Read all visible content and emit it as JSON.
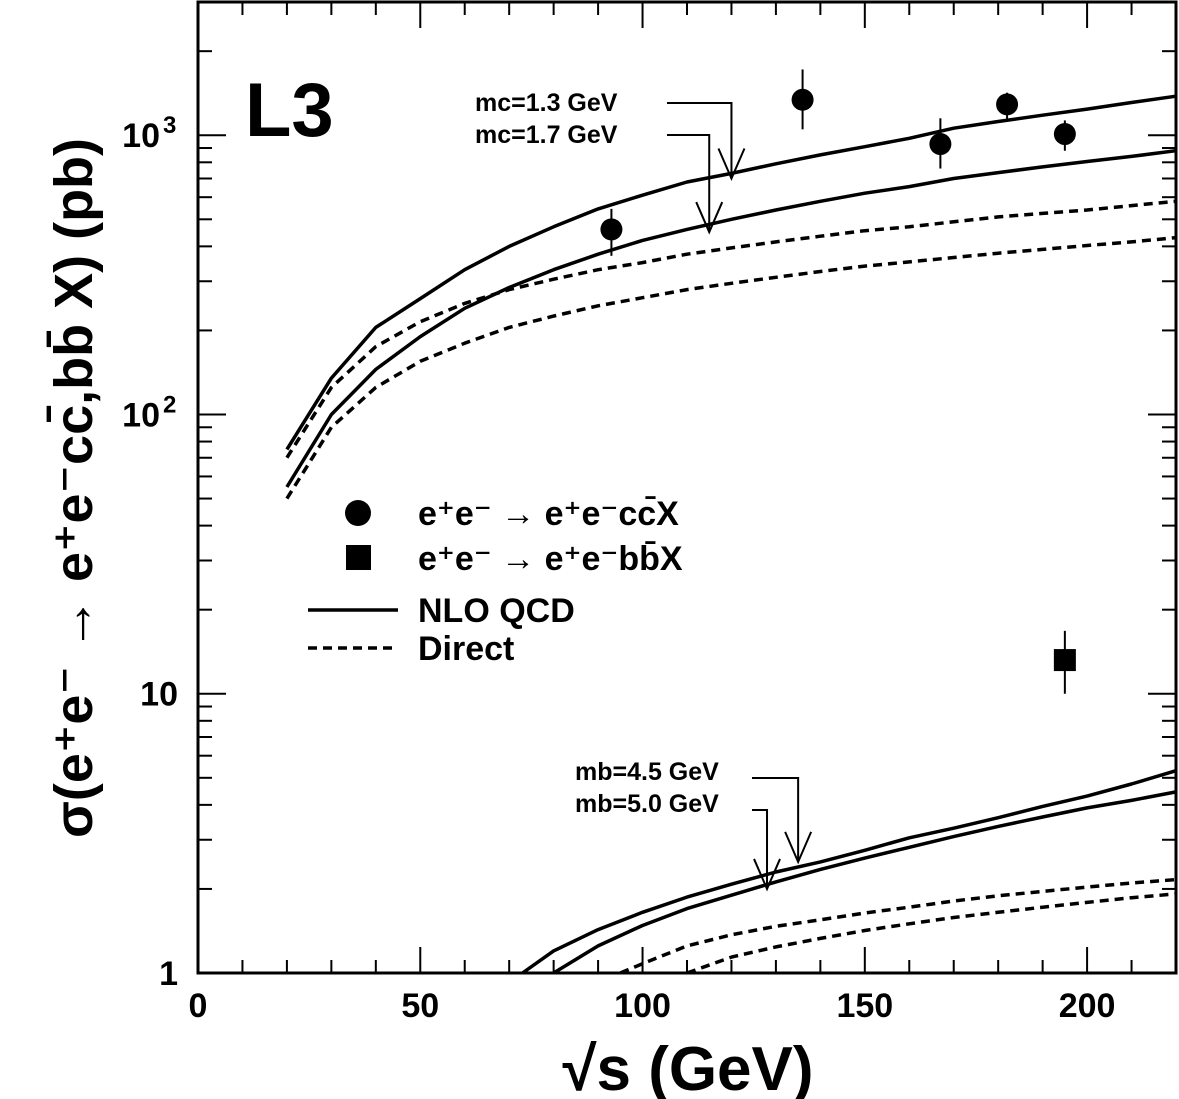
{
  "chart_data": {
    "type": "line",
    "title": "",
    "experiment_label": "L3",
    "xlabel": "√s (GeV)",
    "ylabel": "σ(e⁺e⁻ → e⁺e⁻cc̄,bb̄ X) (pb)",
    "xlim": [
      0,
      220
    ],
    "ylim": [
      1,
      3000
    ],
    "yscale": "log",
    "grid": false,
    "x_ticks": [
      {
        "value": 0,
        "label": "0"
      },
      {
        "value": 50,
        "label": "50"
      },
      {
        "value": 100,
        "label": "100"
      },
      {
        "value": 150,
        "label": "150"
      },
      {
        "value": 200,
        "label": "200"
      }
    ],
    "y_ticks": [
      {
        "value": 1,
        "label": "1",
        "sup": ""
      },
      {
        "value": 10,
        "label": "10",
        "sup": ""
      },
      {
        "value": 100,
        "label": "10",
        "sup": "2"
      },
      {
        "value": 1000,
        "label": "10",
        "sup": "3"
      }
    ],
    "legend": {
      "placement": "center-left",
      "entries": [
        {
          "marker": "circle",
          "label": "e⁺e⁻ → e⁺e⁻cc̄X"
        },
        {
          "marker": "square",
          "label": "e⁺e⁻ → e⁺e⁻bb̄X"
        },
        {
          "line": "solid",
          "label": "NLO QCD"
        },
        {
          "line": "dashed",
          "label": "Direct"
        }
      ]
    },
    "annotations": [
      {
        "label": "mc=1.3 GeV",
        "x": 120,
        "y": 700
      },
      {
        "label": "mc=1.7 GeV",
        "x": 115,
        "y": 450
      },
      {
        "label": "mb=4.5 GeV",
        "x": 135,
        "y": 2.5
      },
      {
        "label": "mb=5.0 GeV",
        "x": 128,
        "y": 2.0
      }
    ],
    "series": [
      {
        "style": "solid",
        "x": [
          20,
          30,
          40,
          50,
          60,
          70,
          80,
          90,
          100,
          110,
          120,
          130,
          140,
          150,
          160,
          170,
          180,
          190,
          200,
          210,
          220
        ],
        "values": [
          75,
          135,
          205,
          260,
          330,
          400,
          470,
          545,
          610,
          680,
          730,
          790,
          850,
          910,
          975,
          1060,
          1120,
          1180,
          1240,
          1310,
          1380
        ]
      },
      {
        "style": "solid",
        "x": [
          20,
          30,
          40,
          50,
          60,
          70,
          80,
          90,
          100,
          110,
          120,
          130,
          140,
          150,
          160,
          170,
          180,
          190,
          200,
          210,
          220
        ],
        "values": [
          55,
          100,
          145,
          190,
          240,
          285,
          330,
          375,
          420,
          460,
          500,
          540,
          580,
          620,
          655,
          700,
          735,
          770,
          805,
          840,
          880
        ]
      },
      {
        "style": "dashed",
        "x": [
          20,
          30,
          40,
          50,
          60,
          70,
          80,
          90,
          100,
          110,
          120,
          130,
          140,
          150,
          160,
          170,
          180,
          190,
          200,
          210,
          220
        ],
        "values": [
          70,
          125,
          175,
          215,
          250,
          280,
          305,
          330,
          350,
          375,
          395,
          415,
          435,
          455,
          470,
          490,
          510,
          525,
          540,
          560,
          580
        ]
      },
      {
        "style": "dashed",
        "x": [
          20,
          30,
          40,
          50,
          60,
          70,
          80,
          90,
          100,
          110,
          120,
          130,
          140,
          150,
          160,
          170,
          180,
          190,
          200,
          210,
          220
        ],
        "values": [
          50,
          90,
          125,
          155,
          180,
          205,
          225,
          245,
          262,
          280,
          295,
          310,
          325,
          340,
          352,
          365,
          378,
          390,
          403,
          415,
          430
        ]
      },
      {
        "style": "solid",
        "x": [
          73,
          80,
          90,
          100,
          110,
          120,
          130,
          140,
          150,
          160,
          170,
          180,
          190,
          200,
          210,
          220
        ],
        "values": [
          1.0,
          1.2,
          1.43,
          1.65,
          1.87,
          2.08,
          2.3,
          2.5,
          2.75,
          3.05,
          3.3,
          3.6,
          3.95,
          4.3,
          4.75,
          5.3
        ]
      },
      {
        "style": "solid",
        "x": [
          80,
          90,
          100,
          110,
          120,
          130,
          140,
          150,
          160,
          170,
          180,
          190,
          200,
          210,
          220
        ],
        "values": [
          1.0,
          1.25,
          1.48,
          1.7,
          1.9,
          2.12,
          2.35,
          2.58,
          2.82,
          3.08,
          3.35,
          3.62,
          3.9,
          4.15,
          4.45
        ]
      },
      {
        "style": "dashed",
        "x": [
          95,
          100,
          110,
          120,
          130,
          140,
          150,
          160,
          170,
          180,
          190,
          200,
          210,
          220
        ],
        "values": [
          1.0,
          1.08,
          1.25,
          1.37,
          1.47,
          1.55,
          1.64,
          1.72,
          1.81,
          1.89,
          1.96,
          2.03,
          2.1,
          2.16
        ]
      },
      {
        "style": "dashed",
        "x": [
          110,
          120,
          130,
          140,
          150,
          160,
          170,
          180,
          190,
          200,
          210,
          220
        ],
        "values": [
          1.0,
          1.14,
          1.24,
          1.33,
          1.42,
          1.5,
          1.58,
          1.65,
          1.72,
          1.79,
          1.86,
          1.92
        ]
      }
    ],
    "points_cc": [
      {
        "x": 93,
        "y": 460,
        "ylo": 370,
        "yhi": 545
      },
      {
        "x": 136,
        "y": 1340,
        "ylo": 1050,
        "yhi": 1720
      },
      {
        "x": 167,
        "y": 930,
        "ylo": 760,
        "yhi": 1150
      },
      {
        "x": 182,
        "y": 1290,
        "ylo": 1120,
        "yhi": 1420
      },
      {
        "x": 195,
        "y": 1010,
        "ylo": 880,
        "yhi": 1130
      }
    ],
    "points_bb": [
      {
        "x": 195,
        "y": 13.2,
        "ylo": 10.0,
        "yhi": 16.8
      }
    ]
  }
}
